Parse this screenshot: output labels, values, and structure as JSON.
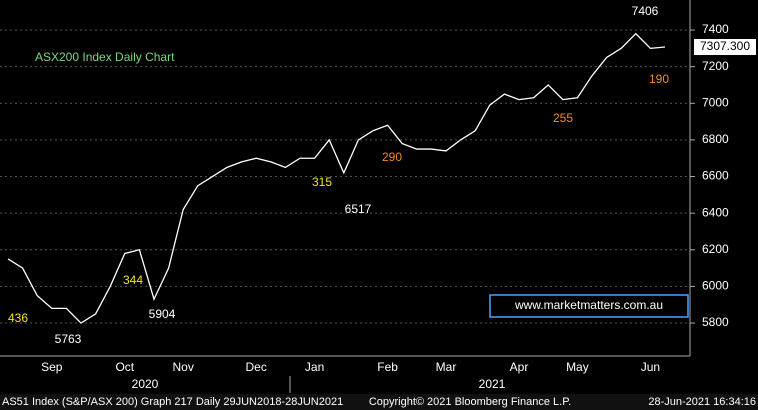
{
  "chart_data": {
    "type": "line",
    "title": "ASX200 Index Daily Chart",
    "watermark": "www.marketmatters.com.au",
    "categories": [
      null,
      null,
      null,
      "Sep",
      null,
      null,
      null,
      null,
      "Oct",
      null,
      null,
      null,
      "Nov",
      null,
      null,
      null,
      null,
      "Dec",
      null,
      null,
      null,
      "Jan",
      null,
      null,
      null,
      null,
      "Feb",
      null,
      null,
      null,
      "Mar",
      null,
      null,
      null,
      null,
      "Apr",
      null,
      null,
      null,
      "May",
      null,
      null,
      null,
      null,
      "Jun",
      null
    ],
    "x_groups": [
      "2020",
      "2021"
    ],
    "series": [
      {
        "name": "AS51 Index",
        "color": "#ffffff",
        "values": [
          6150,
          6100,
          5950,
          5880,
          5880,
          5800,
          5850,
          6000,
          6180,
          6200,
          5930,
          6100,
          6420,
          6550,
          6600,
          6650,
          6680,
          6700,
          6680,
          6650,
          6700,
          6700,
          6800,
          6620,
          6800,
          6850,
          6880,
          6780,
          6750,
          6750,
          6740,
          6800,
          6850,
          6990,
          7050,
          7020,
          7030,
          7100,
          7020,
          7030,
          7150,
          7250,
          7300,
          7380,
          7300,
          7307.3
        ]
      }
    ],
    "last_label": "7307.300",
    "annotations": [
      {
        "text": "7406",
        "color": "#ffffff"
      },
      {
        "text": "190",
        "color": "#f28c1e"
      },
      {
        "text": "255",
        "color": "#f28c1e"
      },
      {
        "text": "290",
        "color": "#f28c1e"
      },
      {
        "text": "315",
        "color": "#f5e60a"
      },
      {
        "text": "6517",
        "color": "#ffffff"
      },
      {
        "text": "344",
        "color": "#f5e60a"
      },
      {
        "text": "5904",
        "color": "#ffffff"
      },
      {
        "text": "5763",
        "color": "#ffffff"
      },
      {
        "text": "436",
        "color": "#f5e60a"
      }
    ],
    "ylim": [
      5620,
      7564
    ],
    "yticks": [
      5800,
      6000,
      6200,
      6400,
      6600,
      6800,
      7000,
      7200,
      7400
    ],
    "grid": true,
    "footer": {
      "left": "AS51 Index (S&P/ASX 200) Graph 217  Daily 29JUN2018-28JUN2021",
      "center": "Copyright© 2021 Bloomberg Finance L.P.",
      "right": "28-Jun-2021 16:34:16"
    }
  }
}
